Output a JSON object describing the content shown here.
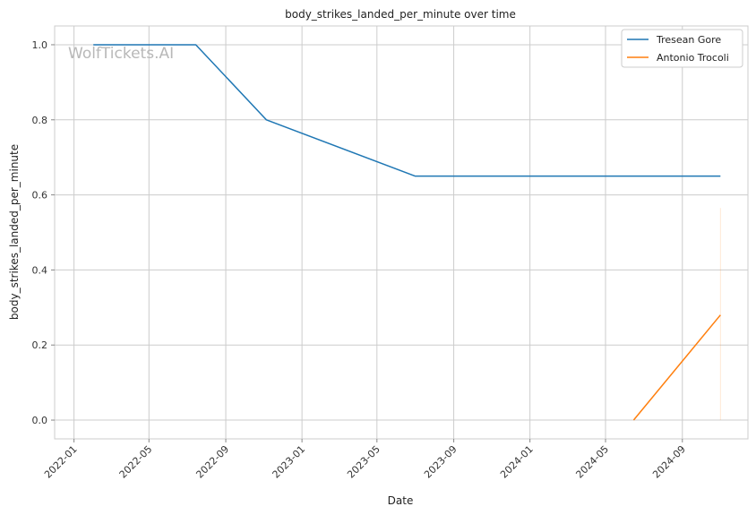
{
  "chart_data": {
    "type": "line",
    "title": "body_strikes_landed_per_minute over time",
    "xlabel": "Date",
    "ylabel": "body_strikes_landed_per_minute",
    "watermark": "WolfTickets.AI",
    "x_ticks": [
      "2022-01",
      "2022-05",
      "2022-09",
      "2023-01",
      "2023-05",
      "2023-09",
      "2024-01",
      "2024-05",
      "2024-09"
    ],
    "y_ticks": [
      "0.0",
      "0.2",
      "0.4",
      "0.6",
      "0.8",
      "1.0"
    ],
    "xlim": [
      "2021-12-01",
      "2024-12-15"
    ],
    "ylim": [
      -0.05,
      1.05
    ],
    "grid": true,
    "legend": "top-right",
    "series": [
      {
        "name": "Tresean Gore",
        "color": "#1f77b4",
        "points": [
          {
            "x": "2022-02-01",
            "y": 1.0
          },
          {
            "x": "2022-07-15",
            "y": 1.0
          },
          {
            "x": "2022-11-05",
            "y": 0.8
          },
          {
            "x": "2023-07-01",
            "y": 0.65
          },
          {
            "x": "2024-11-01",
            "y": 0.65
          }
        ]
      },
      {
        "name": "Antonio Trocoli",
        "color": "#ff7f0e",
        "points": [
          {
            "x": "2024-06-15",
            "y": 0.0
          },
          {
            "x": "2024-11-01",
            "y": 0.28
          }
        ],
        "band": {
          "x": "2024-11-01",
          "low": 0.0,
          "high": 0.565
        }
      }
    ]
  }
}
